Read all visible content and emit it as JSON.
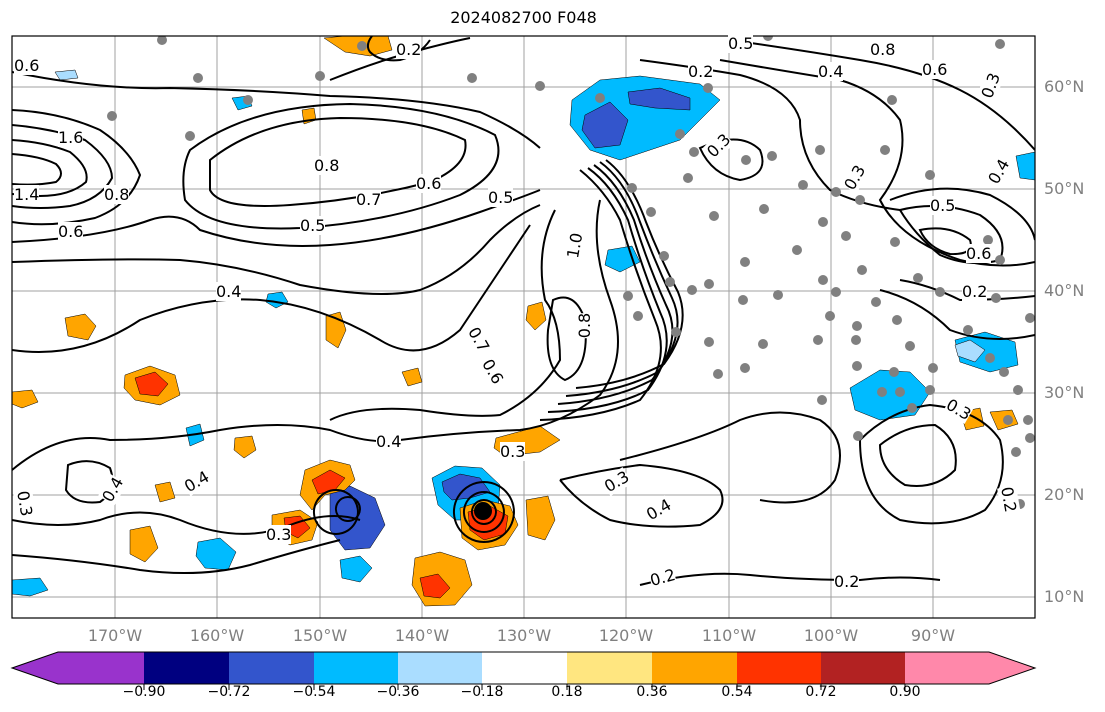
{
  "title": "2024082700 F048",
  "map": {
    "projection": "equirectangular",
    "lon_range": [
      -180,
      -80
    ],
    "lat_range": [
      8,
      66
    ],
    "lat_ticks": [
      "60°N",
      "50°N",
      "40°N",
      "30°N",
      "20°N",
      "10°N"
    ],
    "lon_ticks": [
      "170°W",
      "160°W",
      "150°W",
      "140°W",
      "130°W",
      "120°W",
      "110°W",
      "100°W",
      "90°W"
    ],
    "grid": true,
    "grid_color": "#a0a0a0",
    "contour_color": "#000000",
    "contour_labels": [
      "0.6",
      "1.6",
      "1.4",
      "0.6",
      "0.8",
      "0.8",
      "0.7",
      "0.6",
      "0.5",
      "0.5",
      "0.4",
      "0.7",
      "0.6",
      "0.8",
      "1.0",
      "0.3",
      "0.4",
      "0.4",
      "0.3",
      "0.3",
      "0.4",
      "0.3",
      "0.4",
      "0.2",
      "0.2",
      "0.5",
      "0.2",
      "0.4",
      "0.8",
      "0.6",
      "0.3",
      "0.3",
      "0.3",
      "0.4",
      "0.5",
      "0.6",
      "0.2",
      "0.3",
      "0.2",
      "0.2"
    ],
    "storm_marker": "black-dot",
    "station_marker_color": "#808080"
  },
  "colorbar": {
    "tick_labels": [
      "−0.90",
      "−0.72",
      "−0.54",
      "−0.36",
      "−0.18",
      "0.18",
      "0.36",
      "0.54",
      "0.72",
      "0.90"
    ],
    "colors": [
      "#9933cc",
      "#000080",
      "#3355cc",
      "#00bbff",
      "#aaddff",
      "#ffffff",
      "#ffe680",
      "#ffa500",
      "#ff3300",
      "#b22222",
      "#ff88aa"
    ]
  }
}
